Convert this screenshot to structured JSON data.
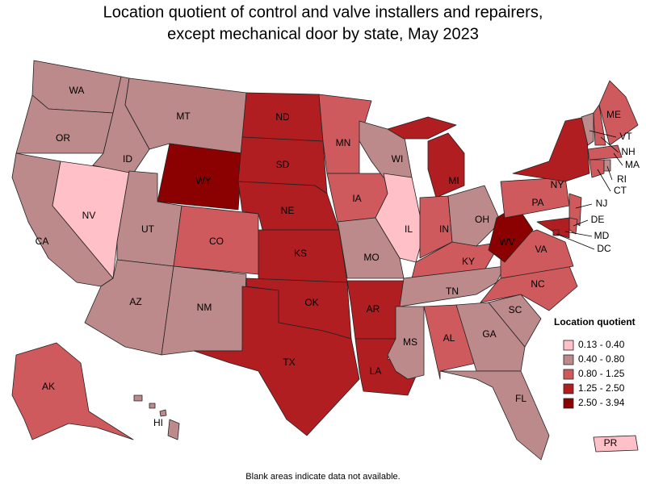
{
  "title_lines": [
    "Location quotient of control and valve installers and repairers,",
    "except mechanical door by state, May 2023"
  ],
  "legend": {
    "title": "Location quotient",
    "bins": [
      {
        "label": "0.13 - 0.40",
        "color": "#ffc0c8"
      },
      {
        "label": "0.40 - 0.80",
        "color": "#bc8a8a"
      },
      {
        "label": "0.80 - 1.25",
        "color": "#cf5a5e"
      },
      {
        "label": "1.25 - 2.50",
        "color": "#b01e22"
      },
      {
        "label": "2.50 - 3.94",
        "color": "#8b0000"
      }
    ]
  },
  "states": [
    {
      "label": "WA",
      "color": "#bc8a8a"
    },
    {
      "label": "OR",
      "color": "#bc8a8a"
    },
    {
      "label": "CA",
      "color": "#bc8a8a"
    },
    {
      "label": "NV",
      "color": "#ffc0c8"
    },
    {
      "label": "ID",
      "color": "#bc8a8a"
    },
    {
      "label": "MT",
      "color": "#bc8a8a"
    },
    {
      "label": "WY",
      "color": "#8b0000"
    },
    {
      "label": "UT",
      "color": "#bc8a8a"
    },
    {
      "label": "AZ",
      "color": "#bc8a8a"
    },
    {
      "label": "CO",
      "color": "#cf5a5e"
    },
    {
      "label": "NM",
      "color": "#bc8a8a"
    },
    {
      "label": "ND",
      "color": "#b01e22"
    },
    {
      "label": "SD",
      "color": "#b01e22"
    },
    {
      "label": "NE",
      "color": "#b01e22"
    },
    {
      "label": "KS",
      "color": "#b01e22"
    },
    {
      "label": "OK",
      "color": "#b01e22"
    },
    {
      "label": "TX",
      "color": "#b01e22"
    },
    {
      "label": "MN",
      "color": "#cf5a5e"
    },
    {
      "label": "IA",
      "color": "#cf5a5e"
    },
    {
      "label": "MO",
      "color": "#bc8a8a"
    },
    {
      "label": "AR",
      "color": "#b01e22"
    },
    {
      "label": "LA",
      "color": "#b01e22"
    },
    {
      "label": "WI",
      "color": "#bc8a8a"
    },
    {
      "label": "IL",
      "color": "#ffc0c8"
    },
    {
      "label": "MI",
      "color": "#b01e22"
    },
    {
      "label": "IN",
      "color": "#cf5a5e"
    },
    {
      "label": "OH",
      "color": "#bc8a8a"
    },
    {
      "label": "KY",
      "color": "#cf5a5e"
    },
    {
      "label": "TN",
      "color": "#bc8a8a"
    },
    {
      "label": "MS",
      "color": "#bc8a8a"
    },
    {
      "label": "AL",
      "color": "#cf5a5e"
    },
    {
      "label": "GA",
      "color": "#bc8a8a"
    },
    {
      "label": "FL",
      "color": "#bc8a8a"
    },
    {
      "label": "SC",
      "color": "#bc8a8a"
    },
    {
      "label": "NC",
      "color": "#cf5a5e"
    },
    {
      "label": "VA",
      "color": "#cf5a5e"
    },
    {
      "label": "WV",
      "color": "#8b0000"
    },
    {
      "label": "PA",
      "color": "#cf5a5e"
    },
    {
      "label": "NY",
      "color": "#b01e22"
    },
    {
      "label": "VT",
      "color": "#bc8a8a"
    },
    {
      "label": "NH",
      "color": "#cf5a5e"
    },
    {
      "label": "ME",
      "color": "#cf5a5e"
    },
    {
      "label": "MA",
      "color": "#cf5a5e"
    },
    {
      "label": "CT",
      "color": "#cf5a5e"
    },
    {
      "label": "RI",
      "color": "#bc8a8a"
    },
    {
      "label": "NJ",
      "color": "#cf5a5e"
    },
    {
      "label": "DE",
      "color": "#cf5a5e"
    },
    {
      "label": "MD",
      "color": "#b01e22"
    },
    {
      "label": "DC",
      "color": "#b01e22"
    },
    {
      "label": "AK",
      "color": "#cf5a5e"
    },
    {
      "label": "HI",
      "color": "#bc8a8a"
    },
    {
      "label": "PR",
      "color": "#ffc0c8"
    }
  ],
  "note": "Blank areas indicate data not available."
}
